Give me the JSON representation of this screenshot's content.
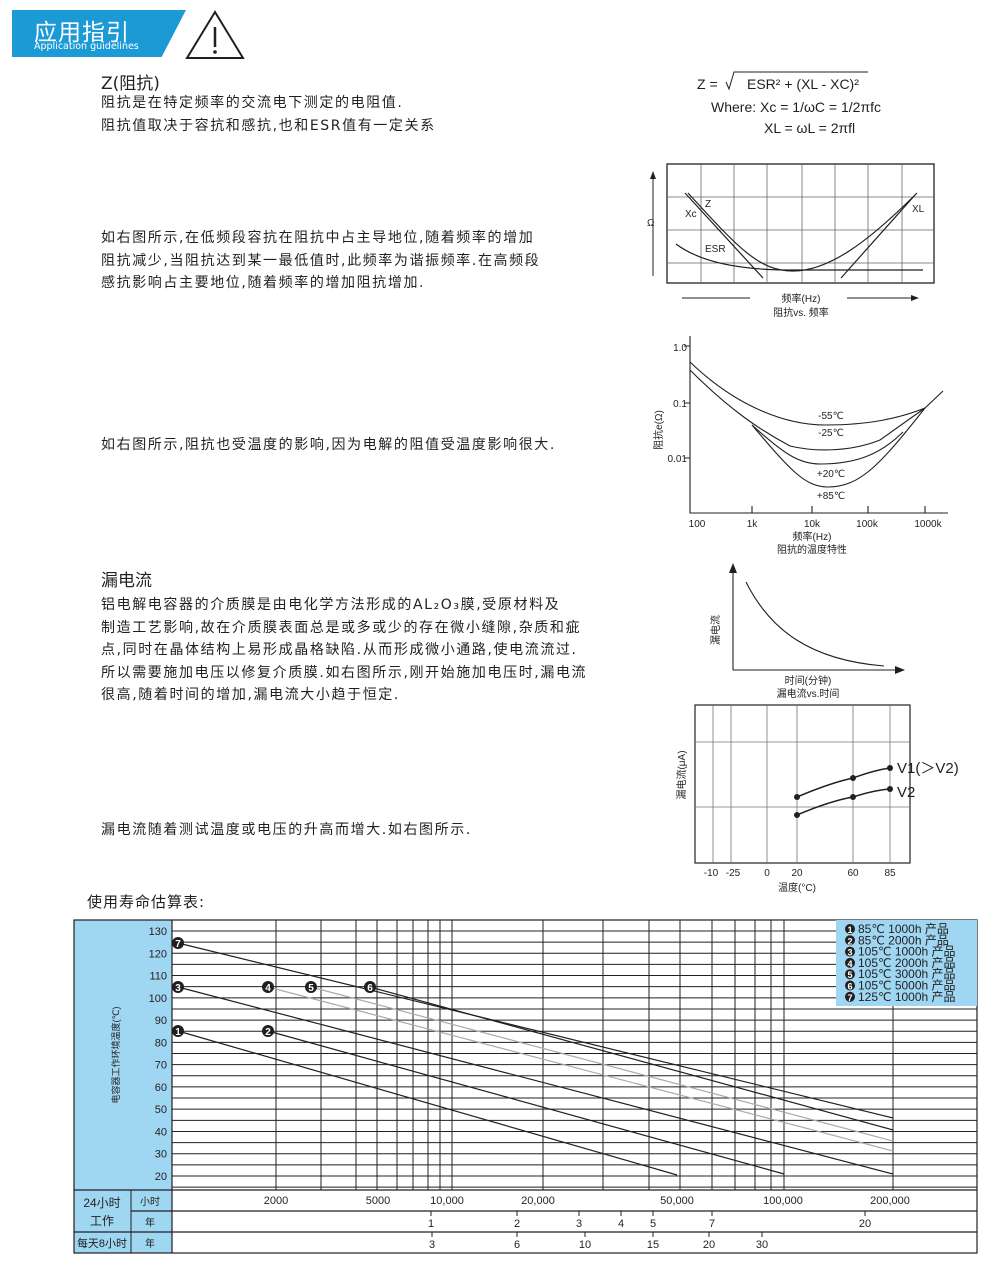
{
  "header": {
    "title": "应用指引",
    "subtitle": "Application guidelines",
    "icon": "warning-triangle-icon",
    "accent": "#1c9ad6"
  },
  "impedance": {
    "heading": "Z(阻抗)",
    "lines": [
      "阻抗是在特定频率的交流电下测定的电阻值.",
      "阻抗值取决于容抗和感抗,也和ESR值有一定关系"
    ],
    "para2": [
      "如右图所示,在低频段容抗在阻抗中占主导地位,随着频率的增加",
      "阻抗减少,当阻抗达到某一最低值时,此频率为谐振频率.在高频段",
      "感抗影响占主要地位,随着频率的增加阻抗增加."
    ],
    "para3": "如右图所示,阻抗也受温度的影响,因为电解的阻值受温度影响很大.",
    "formula": {
      "line1_lhs": "Z =",
      "line1": "ESR² + (XL - XC)²",
      "line2": "Where: Xc = 1/ωC = 1/2πfc",
      "line3": "XL = ωL = 2πfl"
    }
  },
  "leakage": {
    "heading": "漏电流",
    "lines": [
      "铝电解电容器的介质膜是由电化学方法形成的AL₂O₃膜,受原材料及",
      "制造工艺影响,故在介质膜表面总是或多或少的存在微小缝隙,杂质和疵",
      "点,同时在晶体结构上易形成晶格缺陷.从而形成微小通路,使电流流过.",
      "所以需要施加电压以修复介质膜.如右图所示,刚开始施加电压时,漏电流",
      "很高,随着时间的增加,漏电流大小趋于恒定."
    ],
    "para2": "漏电流随着测试温度或电压的升高而增大.如右图所示."
  },
  "life_heading": "使用寿命估算表:",
  "chart_data": [
    {
      "type": "line",
      "title": "阻抗vs. 频率",
      "xlabel": "频率(Hz)",
      "ylabel": "Ω",
      "series": [
        {
          "name": "Z"
        },
        {
          "name": "Xc"
        },
        {
          "name": "ESR"
        },
        {
          "name": "XL"
        }
      ],
      "grid": true
    },
    {
      "type": "line",
      "title": "阻抗的温度特性",
      "xlabel": "频率(Hz)",
      "ylabel": "阻抗e(Ω)",
      "xscale": "log",
      "yscale": "log",
      "xticks": [
        "100",
        "1k",
        "10k",
        "100k",
        "1000k"
      ],
      "yticks": [
        "1.0",
        "0.1",
        "0.01"
      ],
      "series": [
        {
          "name": "-55℃"
        },
        {
          "name": "-25℃"
        },
        {
          "name": "+20℃"
        },
        {
          "name": "+85℃"
        }
      ]
    },
    {
      "type": "line",
      "title": "漏电流vs.时间",
      "xlabel": "时间(分钟)",
      "ylabel": "漏电流"
    },
    {
      "type": "line",
      "xlabel": "温度(°C)",
      "ylabel": "漏电流(μA)",
      "xticks": [
        "-10",
        "-25",
        "0",
        "20",
        "60",
        "85"
      ],
      "series": [
        {
          "name": "V1(＞V2)",
          "x": [
            20,
            60,
            85
          ]
        },
        {
          "name": "V2",
          "x": [
            20,
            60,
            85
          ]
        }
      ],
      "grid": true
    },
    {
      "type": "line",
      "ylabel": "电容器工作环境温度(℃)",
      "yticks": [
        "130",
        "120",
        "110",
        "100",
        "90",
        "80",
        "70",
        "60",
        "50",
        "40",
        "30",
        "20"
      ],
      "ylim": [
        20,
        130
      ],
      "xscale": "log",
      "rows": [
        {
          "group": "24小时工作",
          "unit": "小时",
          "ticks": [
            "2000",
            "5000",
            "10,000",
            "20,000",
            "50,000",
            "100,000",
            "200,000"
          ]
        },
        {
          "group": "24小时工作",
          "unit": "年",
          "ticks": [
            "1",
            "2",
            "3",
            "4",
            "5",
            "7",
            "20"
          ]
        },
        {
          "group": "每天8小时",
          "unit": "年",
          "ticks": [
            "3",
            "6",
            "10",
            "15",
            "20",
            "30"
          ]
        }
      ],
      "group_labels": [
        "24小时",
        "工作",
        "每天8小时"
      ],
      "legend": [
        "85℃ 1000h 产品",
        "85℃ 2000h 产品",
        "105℃ 1000h 产品",
        "105℃ 2000h 产品",
        "105℃ 3000h 产品",
        "105℃ 5000h 产品",
        "125℃ 1000h 产品"
      ],
      "legend_position": "top-right",
      "series": [
        {
          "name": "1",
          "start": [
            1000,
            85
          ]
        },
        {
          "name": "2",
          "start": [
            2000,
            85
          ]
        },
        {
          "name": "3",
          "start": [
            1000,
            105
          ]
        },
        {
          "name": "4",
          "start": [
            2000,
            105
          ]
        },
        {
          "name": "5",
          "start": [
            3000,
            105
          ]
        },
        {
          "name": "6",
          "start": [
            5000,
            105
          ]
        },
        {
          "name": "7",
          "start": [
            1000,
            125
          ]
        }
      ],
      "panel_color": "#9fd6f1"
    }
  ]
}
